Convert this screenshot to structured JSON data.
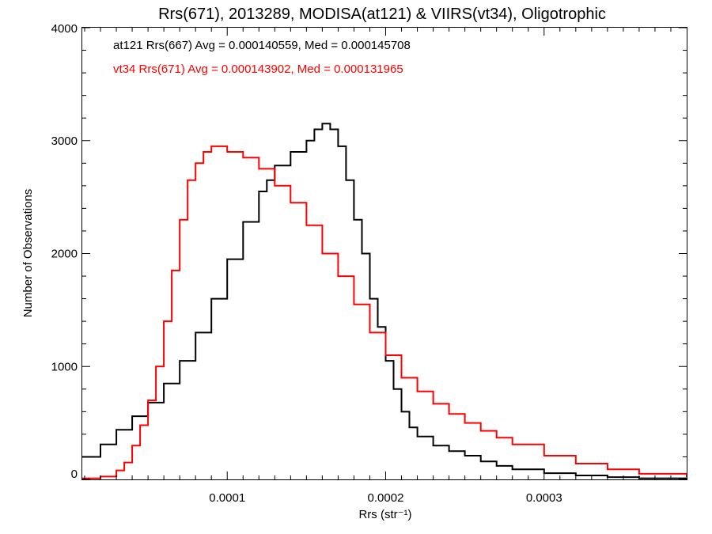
{
  "colors": {
    "at121": "#000000",
    "vt34": "#ff0000",
    "background": "#ffffff",
    "axes": "#000000"
  },
  "chart_data": {
    "type": "line",
    "style": "histogram-step",
    "title": "Rrs(671), 2013289, MODISA(at121) & VIIRS(vt34), Oligotrophic",
    "xlabel": "Rrs (str⁻¹)",
    "ylabel": "Number of Observations",
    "xlim": [
      8.5e-06,
      0.00039
    ],
    "ylim": [
      0,
      4000
    ],
    "xticks": [
      0.0001,
      0.0002,
      0.0003
    ],
    "xtick_labels": [
      "0.0001",
      "0.0002",
      "0.0003"
    ],
    "yticks": [
      0,
      1000,
      2000,
      3000,
      4000
    ],
    "ytick_labels": [
      "0",
      "1000",
      "2000",
      "3000",
      "4000"
    ],
    "grid": false,
    "annotations": [
      {
        "text": "at121 Rrs(667) Avg = 0.000140559, Med = 0.000145708",
        "color": "#000000"
      },
      {
        "text": "vt34 Rrs(671) Avg = 0.000143902, Med = 0.000131965",
        "color": "#ff0000"
      }
    ],
    "series": [
      {
        "color": "#000000",
        "x": [
          8.5e-06,
          2e-05,
          3e-05,
          4e-05,
          5e-05,
          6e-05,
          7e-05,
          8e-05,
          9e-05,
          0.0001,
          0.00011,
          0.00012,
          0.000125,
          0.00013,
          0.00014,
          0.00015,
          0.000155,
          0.00016,
          0.000165,
          0.00017,
          0.000175,
          0.00018,
          0.000185,
          0.00019,
          0.000195,
          0.0002,
          0.000205,
          0.00021,
          0.000215,
          0.00022,
          0.00023,
          0.00024,
          0.00025,
          0.00026,
          0.00027,
          0.00028,
          0.0003,
          0.00032,
          0.00034,
          0.00036,
          0.00039
        ],
        "y": [
          200,
          310,
          440,
          560,
          680,
          850,
          1050,
          1300,
          1600,
          1950,
          2280,
          2550,
          2650,
          2780,
          2900,
          3000,
          3100,
          3150,
          3100,
          2950,
          2650,
          2300,
          2000,
          1600,
          1350,
          1050,
          800,
          600,
          460,
          380,
          300,
          250,
          210,
          160,
          120,
          90,
          55,
          35,
          20,
          10,
          5
        ]
      },
      {
        "color": "#ff0000",
        "x": [
          8.5e-06,
          2e-05,
          3e-05,
          3.5e-05,
          4e-05,
          4.5e-05,
          5e-05,
          5.5e-05,
          6e-05,
          6.5e-05,
          7e-05,
          7.5e-05,
          8e-05,
          8.5e-05,
          9e-05,
          0.0001,
          0.00011,
          0.00012,
          0.00013,
          0.00014,
          0.00015,
          0.00016,
          0.00017,
          0.00018,
          0.00019,
          0.0002,
          0.00021,
          0.00022,
          0.00023,
          0.00024,
          0.00025,
          0.00026,
          0.00027,
          0.00028,
          0.0003,
          0.00032,
          0.00034,
          0.00036,
          0.00039
        ],
        "y": [
          10,
          25,
          80,
          150,
          300,
          480,
          700,
          1000,
          1400,
          1850,
          2300,
          2650,
          2800,
          2900,
          2950,
          2900,
          2850,
          2750,
          2600,
          2450,
          2250,
          2000,
          1800,
          1550,
          1300,
          1100,
          900,
          780,
          670,
          580,
          500,
          430,
          370,
          310,
          210,
          140,
          90,
          50,
          20
        ]
      }
    ]
  }
}
